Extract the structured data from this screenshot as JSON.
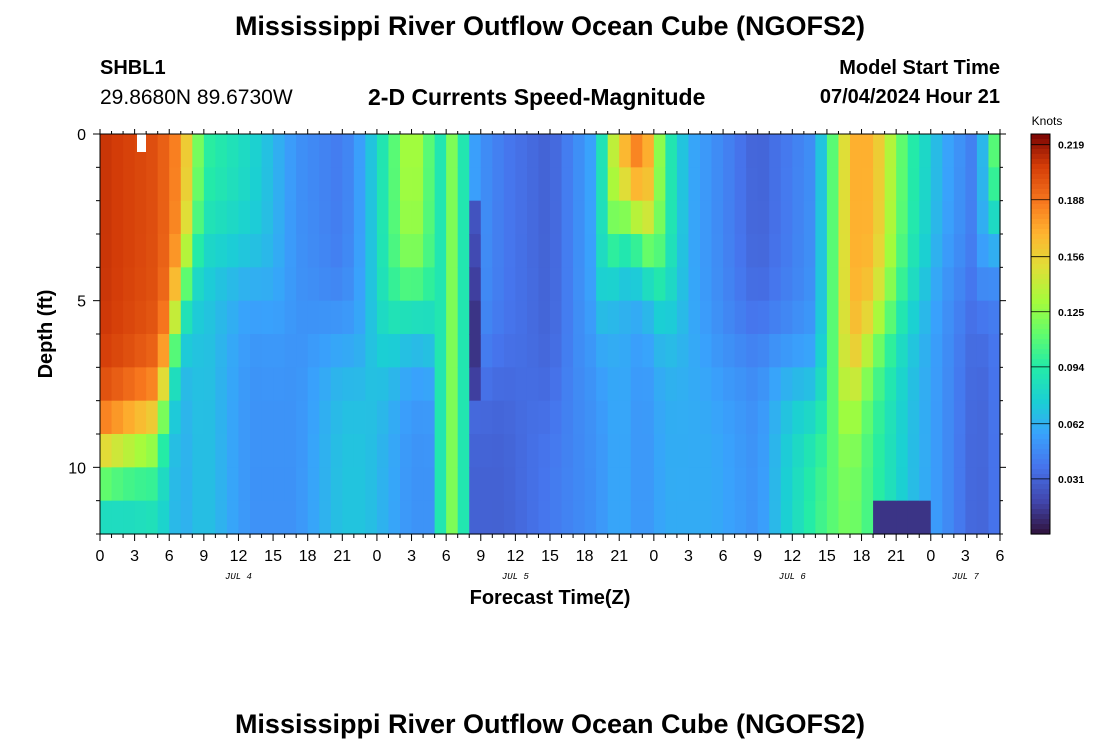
{
  "header": {
    "title": "Mississippi River Outflow Ocean Cube (NGOFS2)",
    "station_id": "SHBL1",
    "station_coords": "29.8680N  89.6730W",
    "subtitle": "2-D Currents Speed-Magnitude",
    "model_start_label": "Model Start Time",
    "model_start_value": "07/04/2024 Hour 21"
  },
  "footer": {
    "title": "Mississippi River Outflow Ocean Cube (NGOFS2)"
  },
  "chart_data": {
    "type": "heatmap",
    "title": "2-D Currents Speed-Magnitude",
    "xlabel": "Forecast Time(Z)",
    "ylabel": "Depth (ft)",
    "xlim": [
      0,
      78
    ],
    "ylim": [
      0,
      12
    ],
    "x_tick_labels": [
      "0",
      "3",
      "6",
      "9",
      "12",
      "15",
      "18",
      "21",
      "0",
      "3",
      "6",
      "9",
      "12",
      "15",
      "18",
      "21",
      "0",
      "3",
      "6",
      "9",
      "12",
      "15",
      "18",
      "21",
      "0",
      "3",
      "6"
    ],
    "y_tick_labels": [
      "0",
      "5",
      "10"
    ],
    "y_tick_values": [
      0,
      5,
      10
    ],
    "date_labels": [
      {
        "text": "JUL 4",
        "hour": 12
      },
      {
        "text": "JUL 5",
        "hour": 36
      },
      {
        "text": "JUL 6",
        "hour": 60
      },
      {
        "text": "JUL 7",
        "hour": 75
      }
    ],
    "colorbar": {
      "unit": "Knots",
      "min": 0.0,
      "max": 0.225,
      "ticks": [
        "0.219",
        "0.188",
        "0.156",
        "0.125",
        "0.094",
        "0.062",
        "0.031"
      ],
      "tick_values": [
        0.219,
        0.188,
        0.156,
        0.125,
        0.094,
        0.062,
        0.031
      ]
    },
    "time_step_hours": 1,
    "depth_bins": 12,
    "description_keyframes_hours": [
      0,
      5,
      7,
      9,
      13,
      17,
      21,
      23,
      27,
      29,
      30,
      31,
      33,
      35,
      39,
      43,
      45,
      47,
      49,
      51,
      53,
      57,
      62,
      65,
      67,
      70,
      73,
      76,
      78
    ]
  },
  "colors": {
    "background": "#ffffff",
    "axis": "#000000"
  }
}
